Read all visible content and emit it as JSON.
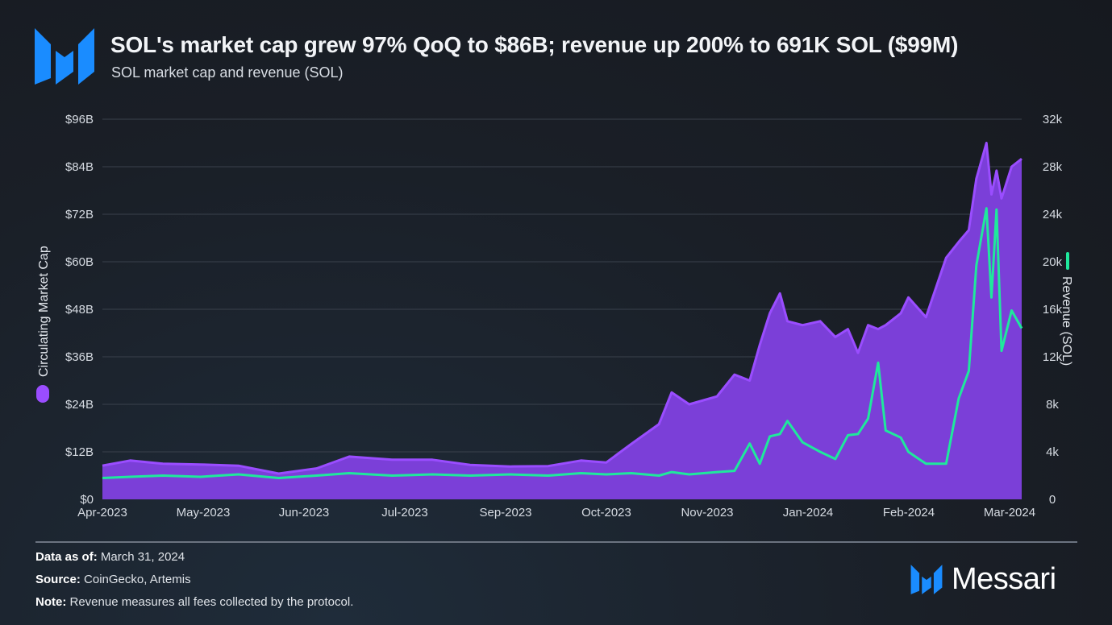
{
  "header": {
    "title": "SOL's market cap grew 97% QoQ to $86B; revenue up 200% to 691K SOL ($99M)",
    "subtitle": "SOL market cap and revenue (SOL)"
  },
  "colors": {
    "background": "#1a1f27",
    "market_cap_fill": "#7b3fd8",
    "market_cap_line": "#9a4dff",
    "revenue_line": "#1fe89c",
    "brand_blue": "#1a8cff"
  },
  "chart_data": {
    "type": "area+line",
    "title": "SOL's market cap grew 97% QoQ to $86B; revenue up 200% to 691K SOL ($99M)",
    "subtitle": "SOL market cap and revenue (SOL)",
    "xlabel": "",
    "x_ticks": [
      "Apr-2023",
      "May-2023",
      "Jun-2023",
      "Jul-2023",
      "Sep-2023",
      "Oct-2023",
      "Nov-2023",
      "Jan-2024",
      "Feb-2024",
      "Mar-2024"
    ],
    "x_range": [
      "2023-04-01",
      "2024-03-31"
    ],
    "y_left": {
      "label": "Circulating Market Cap",
      "unit": "USD billions",
      "ylim": [
        0,
        96
      ],
      "ticks": [
        "$0",
        "$12B",
        "$24B",
        "$36B",
        "$48B",
        "$60B",
        "$72B",
        "$84B",
        "$96B"
      ]
    },
    "y_right": {
      "label": "Revenue (SOL)",
      "unit": "thousand SOL",
      "ylim": [
        0,
        32
      ],
      "ticks": [
        "0",
        "4k",
        "8k",
        "12k",
        "16k",
        "20k",
        "24k",
        "28k",
        "32k"
      ]
    },
    "grid": true,
    "series": [
      {
        "name": "Circulating Market Cap",
        "axis": "left",
        "style": "area"
      },
      {
        "name": "Revenue (SOL)",
        "axis": "right",
        "style": "line"
      }
    ],
    "points": [
      [
        "2023-04-01",
        8.5,
        1.8
      ],
      [
        "2023-04-12",
        9.8,
        1.9
      ],
      [
        "2023-04-25",
        9.0,
        2.0
      ],
      [
        "2023-05-10",
        8.8,
        1.9
      ],
      [
        "2023-05-25",
        8.5,
        2.1
      ],
      [
        "2023-06-10",
        6.5,
        1.8
      ],
      [
        "2023-06-25",
        7.8,
        2.0
      ],
      [
        "2023-07-08",
        10.8,
        2.2
      ],
      [
        "2023-07-25",
        10.0,
        2.0
      ],
      [
        "2023-08-10",
        10.0,
        2.1
      ],
      [
        "2023-08-25",
        8.7,
        2.0
      ],
      [
        "2023-09-10",
        8.3,
        2.1
      ],
      [
        "2023-09-25",
        8.4,
        2.0
      ],
      [
        "2023-10-08",
        9.8,
        2.2
      ],
      [
        "2023-10-18",
        9.3,
        2.1
      ],
      [
        "2023-10-28",
        14.0,
        2.2
      ],
      [
        "2023-11-08",
        19.0,
        2.0
      ],
      [
        "2023-11-13",
        27.0,
        2.3
      ],
      [
        "2023-11-20",
        24.0,
        2.1
      ],
      [
        "2023-12-01",
        26.0,
        2.3
      ],
      [
        "2023-12-08",
        31.5,
        2.4
      ],
      [
        "2023-12-14",
        30.0,
        4.7
      ],
      [
        "2023-12-18",
        39.0,
        3.0
      ],
      [
        "2023-12-22",
        47.0,
        5.3
      ],
      [
        "2023-12-26",
        52.0,
        5.5
      ],
      [
        "2023-12-29",
        45.0,
        6.6
      ],
      [
        "2024-01-04",
        44.0,
        4.8
      ],
      [
        "2024-01-11",
        45.0,
        4.0
      ],
      [
        "2024-01-17",
        41.0,
        3.4
      ],
      [
        "2024-01-22",
        43.0,
        5.4
      ],
      [
        "2024-01-26",
        37.0,
        5.5
      ],
      [
        "2024-01-30",
        44.0,
        6.8
      ],
      [
        "2024-02-03",
        43.0,
        11.5
      ],
      [
        "2024-02-06",
        44.0,
        5.8
      ],
      [
        "2024-02-12",
        47.0,
        5.2
      ],
      [
        "2024-02-15",
        51.0,
        4.0
      ],
      [
        "2024-02-22",
        46.0,
        3.0
      ],
      [
        "2024-03-01",
        61.0,
        3.0
      ],
      [
        "2024-03-06",
        65.0,
        8.5
      ],
      [
        "2024-03-10",
        68.0,
        10.8
      ],
      [
        "2024-03-13",
        81.0,
        19.7
      ],
      [
        "2024-03-17",
        90.0,
        24.5
      ],
      [
        "2024-03-19",
        77.0,
        17.0
      ],
      [
        "2024-03-21",
        83.0,
        24.4
      ],
      [
        "2024-03-23",
        76.0,
        12.5
      ],
      [
        "2024-03-27",
        84.0,
        15.9
      ],
      [
        "2024-03-31",
        86.0,
        14.4
      ]
    ],
    "points_columns": [
      "date",
      "market_cap_usd_billions",
      "revenue_thousand_sol"
    ]
  },
  "footer": {
    "data_as_of_label": "Data as of:",
    "data_as_of_value": "March 31, 2024",
    "source_label": "Source:",
    "source_value": "CoinGecko, Artemis",
    "note_label": "Note:",
    "note_value": "Revenue measures all fees collected by the protocol.",
    "brand": "Messari"
  }
}
